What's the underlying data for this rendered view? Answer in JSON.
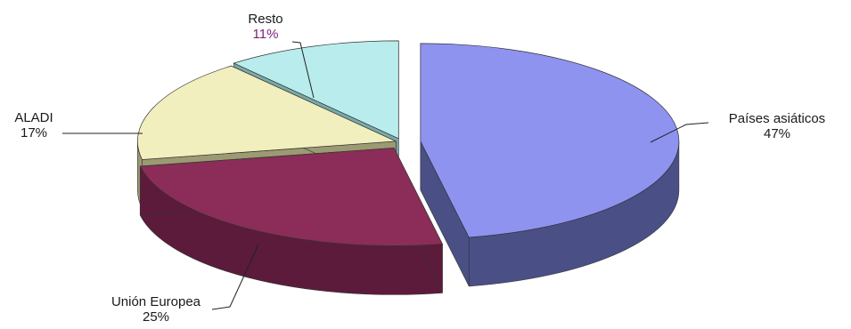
{
  "chart_data": {
    "type": "pie",
    "style": "3d-exploded",
    "title": "",
    "categories": [
      "Países asiáticos",
      "Unión Europea",
      "ALADI",
      "Resto"
    ],
    "values": [
      47,
      25,
      17,
      11
    ],
    "value_labels": [
      "47%",
      "25%",
      "17%",
      "11%"
    ],
    "colors": [
      "#8e93f0",
      "#8b2d58",
      "#f1efbe",
      "#b9ecec"
    ],
    "side_colors": [
      "#4a4f86",
      "#5c1b3a",
      "#9c9a72",
      "#79a9a9"
    ],
    "legend": "none"
  }
}
